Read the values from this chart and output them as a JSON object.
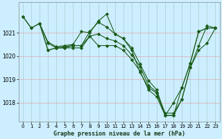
{
  "bg_color": "#cceeff",
  "grid_color": "#aaddcc",
  "line_color": "#1a5c1a",
  "marker_color": "#1a5c1a",
  "series": [
    {
      "x": [
        0,
        1,
        2,
        3,
        4,
        5,
        6,
        7,
        8,
        9,
        10,
        11,
        12,
        13,
        14,
        15,
        16,
        17,
        18,
        19,
        20,
        21,
        22,
        23
      ],
      "y": [
        1021.7,
        1021.2,
        1021.4,
        1020.6,
        1020.4,
        1020.45,
        1020.5,
        1021.05,
        1021.0,
        1021.5,
        1021.8,
        1020.95,
        1020.75,
        1020.35,
        1019.65,
        1018.95,
        1018.55,
        1017.45,
        1018.0,
        1018.65,
        1019.7,
        1021.05,
        1021.2,
        1021.2
      ]
    },
    {
      "x": [
        0,
        1,
        2,
        3,
        4,
        5,
        6,
        7,
        8,
        9,
        10,
        11,
        12,
        13,
        14,
        15,
        16,
        17,
        18,
        19,
        20,
        21,
        22,
        23
      ],
      "y": [
        1021.7,
        1021.2,
        1021.4,
        1020.55,
        1020.35,
        1020.4,
        1020.45,
        1020.45,
        1021.05,
        1021.45,
        1021.25,
        1020.95,
        1020.75,
        1020.25,
        1019.3,
        1018.65,
        1018.4,
        1017.45,
        1017.45,
        1018.65,
        1019.7,
        1021.05,
        1021.2,
        1021.2
      ]
    },
    {
      "x": [
        2,
        3,
        4,
        5,
        6,
        7,
        8,
        9,
        10,
        11,
        12,
        13,
        14,
        15,
        16,
        17,
        18,
        19,
        20,
        21,
        22,
        23
      ],
      "y": [
        1021.4,
        1020.25,
        1020.35,
        1020.35,
        1020.45,
        1020.45,
        1020.85,
        1020.95,
        1020.75,
        1020.65,
        1020.45,
        1020.05,
        1019.55,
        1018.75,
        1018.45,
        1017.55,
        1017.55,
        1018.15,
        1019.5,
        1020.45,
        1021.3,
        1021.2
      ]
    },
    {
      "x": [
        2,
        3,
        4,
        5,
        6,
        7,
        8,
        9,
        10,
        11,
        12,
        13,
        14,
        15,
        16,
        17,
        18,
        19,
        20,
        21,
        22,
        23
      ],
      "y": [
        1021.4,
        1020.25,
        1020.35,
        1020.35,
        1020.35,
        1020.35,
        1020.85,
        1020.45,
        1020.45,
        1020.45,
        1020.25,
        1019.85,
        1019.35,
        1018.55,
        1018.25,
        1017.45,
        1017.45,
        1018.15,
        1019.5,
        1020.25,
        1020.55,
        1021.2
      ]
    }
  ],
  "ylim": [
    1017.2,
    1022.3
  ],
  "yticks": [
    1018,
    1019,
    1020,
    1021
  ],
  "xticks": [
    0,
    1,
    2,
    3,
    4,
    5,
    6,
    7,
    8,
    9,
    10,
    11,
    12,
    13,
    14,
    15,
    16,
    17,
    18,
    19,
    20,
    21,
    22,
    23
  ],
  "xlabel": "Graphe pression niveau de la mer (hPa)",
  "marker": "D",
  "markersize": 2.2,
  "linewidth": 0.8
}
